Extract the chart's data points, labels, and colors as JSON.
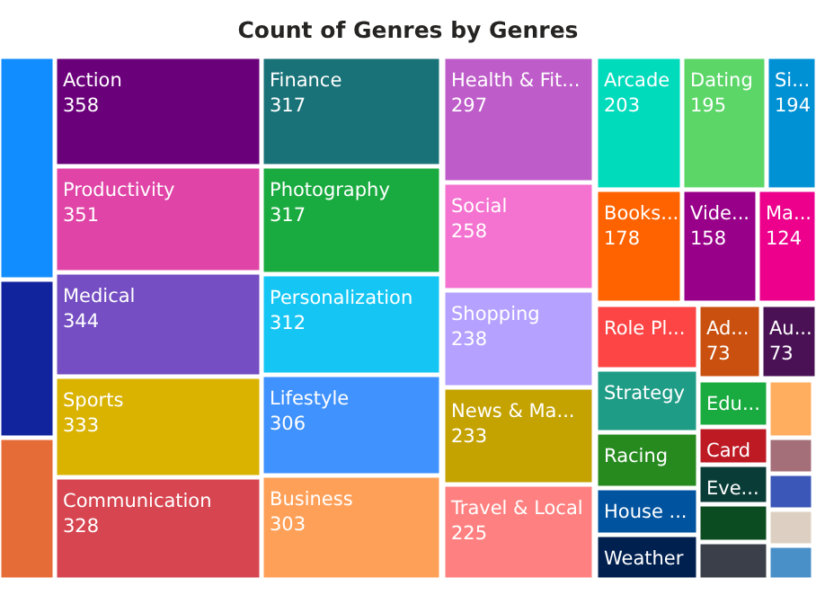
{
  "chart_data": {
    "type": "other",
    "title": "Count of Genres by Genres",
    "data_labels": true,
    "categories": [
      null,
      null,
      null,
      "Action",
      "Productivity",
      "Medical",
      "Sports",
      "Communication",
      "Finance",
      "Photography",
      "Personalization",
      "Lifestyle",
      "Business",
      "Health & Fit...",
      "Social",
      "Shopping",
      "News & Ma...",
      "Travel & Local",
      "Arcade",
      "Dating",
      "Si...",
      "Books...",
      "Vide...",
      "Ma...",
      "Role Pl...",
      "Ad...",
      "Au...",
      "Strategy",
      "Racing",
      "House ...",
      "Weather",
      "Edu...",
      "Card",
      "Eve...",
      null,
      null,
      null,
      null,
      null,
      null,
      null
    ],
    "values": [
      null,
      null,
      null,
      358,
      351,
      344,
      333,
      328,
      317,
      317,
      312,
      306,
      303,
      297,
      258,
      238,
      233,
      225,
      203,
      195,
      194,
      178,
      158,
      124,
      null,
      73,
      73,
      null,
      null,
      null,
      null,
      null,
      null,
      null,
      null,
      null,
      null,
      null,
      null,
      null,
      null
    ],
    "colors": [
      "#118dff",
      "#12239e",
      "#e66c37",
      "#6b007b",
      "#e044a7",
      "#744ec2",
      "#d9b300",
      "#d64550",
      "#197278",
      "#1aab40",
      "#15c6f4",
      "#4092ff",
      "#ffa058",
      "#be5dc9",
      "#f472d0",
      "#b5a1ff",
      "#c4a200",
      "#ff8080",
      "#00dbbc",
      "#5bd667",
      "#0091d5",
      "#ff6300",
      "#99008a",
      "#ec008c",
      "#fd4545",
      "#c9500f",
      "#4a1255",
      "#1e9c86",
      "#268a1f",
      "#00539e",
      "#002050",
      "#1aab40",
      "#bd1a24",
      "#0a3c37",
      "#0b4d21",
      "#3a3f4a",
      "#ffae60",
      "#a56f7a",
      "#3b58b8",
      "#ddd0c2",
      "#4a90c8"
    ]
  }
}
